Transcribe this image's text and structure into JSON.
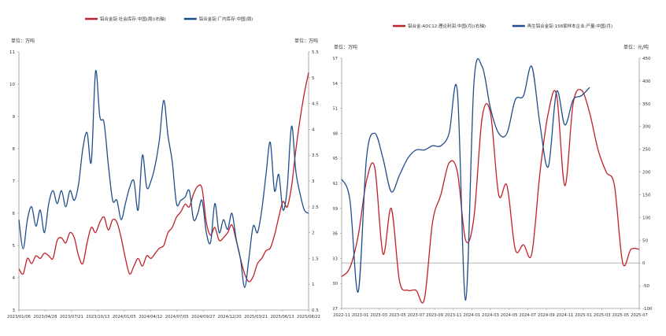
{
  "chart_data": [
    {
      "type": "line",
      "legend": [
        "铝合金锭:社会库存:中国(周)(右轴)",
        "铝合金锭:厂内库存:中国(周)"
      ],
      "left_unit": "单位：万吨",
      "right_unit": "单位：万吨",
      "x_tick_labels": [
        "2023/01/06",
        "2023/04/28",
        "2023/07/21",
        "2023/10/13",
        "2024/01/05",
        "2024/04/12",
        "2024/07/05",
        "2024/09/27",
        "2024/12/20",
        "2025/03/21",
        "2025/06/13",
        "2025/08/22"
      ],
      "left_axis": {
        "min": 3,
        "max": 11,
        "ticks": [
          "3",
          "4",
          "5",
          "6",
          "7",
          "8",
          "9",
          "10",
          "11"
        ]
      },
      "right_axis": {
        "min": 0.5,
        "max": 5.5,
        "ticks": [
          "0.5",
          "1",
          "1.5",
          "2",
          "2.5",
          "3",
          "3.5",
          "4",
          "4.5",
          "5",
          "5.5"
        ]
      },
      "series": [
        {
          "name": "铝合金锭:社会库存:中国(周)(右轴)",
          "axis": "right",
          "color": "#c0202a",
          "values": [
            [
              0,
              1.3
            ],
            [
              0.5,
              1.2
            ],
            [
              1,
              1.5
            ],
            [
              1.5,
              1.4
            ],
            [
              2,
              1.55
            ],
            [
              2.5,
              1.5
            ],
            [
              3,
              1.6
            ],
            [
              3.5,
              1.55
            ],
            [
              4,
              1.5
            ],
            [
              4.5,
              1.85
            ],
            [
              5,
              1.9
            ],
            [
              5.5,
              1.8
            ],
            [
              6,
              2.0
            ],
            [
              6.5,
              1.9
            ],
            [
              7,
              1.55
            ],
            [
              7.5,
              1.4
            ],
            [
              8,
              1.8
            ],
            [
              8.5,
              2.1
            ],
            [
              9,
              2.0
            ],
            [
              9.5,
              2.2
            ],
            [
              10,
              2.3
            ],
            [
              10.5,
              2.05
            ],
            [
              11,
              2.25
            ],
            [
              11.5,
              2.2
            ],
            [
              12,
              1.9
            ],
            [
              12.5,
              1.5
            ],
            [
              13,
              1.2
            ],
            [
              13.5,
              1.35
            ],
            [
              14,
              1.5
            ],
            [
              14.5,
              1.35
            ],
            [
              15,
              1.55
            ],
            [
              15.5,
              1.5
            ],
            [
              16,
              1.6
            ],
            [
              16.5,
              1.7
            ],
            [
              17,
              1.75
            ],
            [
              17.5,
              2.0
            ],
            [
              18,
              2.1
            ],
            [
              18.5,
              2.3
            ],
            [
              19,
              2.4
            ],
            [
              19.5,
              2.55
            ],
            [
              20,
              2.5
            ],
            [
              20.5,
              2.75
            ],
            [
              21,
              2.9
            ],
            [
              21.5,
              2.85
            ],
            [
              22,
              2.2
            ],
            [
              22.5,
              1.95
            ],
            [
              23,
              2.1
            ],
            [
              23.5,
              1.85
            ],
            [
              24,
              1.9
            ],
            [
              24.5,
              2.0
            ],
            [
              25,
              2.15
            ],
            [
              25.5,
              1.85
            ],
            [
              26,
              1.5
            ],
            [
              26.5,
              1.2
            ],
            [
              27,
              1.05
            ],
            [
              27.5,
              1.15
            ],
            [
              28,
              1.4
            ],
            [
              28.5,
              1.5
            ],
            [
              29,
              1.65
            ],
            [
              29.5,
              1.7
            ],
            [
              30,
              1.95
            ],
            [
              30.5,
              2.3
            ],
            [
              31,
              2.6
            ],
            [
              31.5,
              2.5
            ],
            [
              32,
              2.9
            ],
            [
              32.5,
              3.6
            ],
            [
              33,
              4.2
            ],
            [
              33.5,
              4.7
            ],
            [
              34,
              5.1
            ]
          ]
        },
        {
          "name": "铝合金锭:厂内库存:中国(周)",
          "axis": "left",
          "color": "#1f4e8c",
          "values": [
            [
              0,
              5.8
            ],
            [
              0.5,
              4.9
            ],
            [
              1,
              5.8
            ],
            [
              1.5,
              6.2
            ],
            [
              2,
              5.6
            ],
            [
              2.5,
              6.1
            ],
            [
              3,
              5.4
            ],
            [
              3.5,
              6.3
            ],
            [
              4,
              6.7
            ],
            [
              4.5,
              6.3
            ],
            [
              5,
              6.7
            ],
            [
              5.5,
              6.2
            ],
            [
              6,
              6.7
            ],
            [
              6.5,
              6.4
            ],
            [
              7,
              6.9
            ],
            [
              7.5,
              8.0
            ],
            [
              8,
              8.5
            ],
            [
              8.5,
              7.6
            ],
            [
              9,
              10.4
            ],
            [
              9.5,
              9.0
            ],
            [
              10,
              8.8
            ],
            [
              10.5,
              7.5
            ],
            [
              11,
              6.4
            ],
            [
              11.5,
              6.4
            ],
            [
              12,
              5.8
            ],
            [
              12.5,
              6.3
            ],
            [
              13,
              6.8
            ],
            [
              13.5,
              7.0
            ],
            [
              14,
              6.1
            ],
            [
              14.5,
              7.8
            ],
            [
              15,
              6.8
            ],
            [
              15.5,
              7.0
            ],
            [
              16,
              7.5
            ],
            [
              16.5,
              8.3
            ],
            [
              17,
              9.5
            ],
            [
              17.5,
              8.4
            ],
            [
              18,
              7.6
            ],
            [
              18.5,
              6.3
            ],
            [
              19,
              6.4
            ],
            [
              19.5,
              6.5
            ],
            [
              20,
              6.7
            ],
            [
              20.5,
              5.8
            ],
            [
              21,
              6.0
            ],
            [
              21.5,
              6.4
            ],
            [
              22,
              5.4
            ],
            [
              22.5,
              5.1
            ],
            [
              23,
              6.3
            ],
            [
              23.5,
              5.4
            ],
            [
              24,
              5.8
            ],
            [
              24.5,
              5.5
            ],
            [
              25,
              6.0
            ],
            [
              25.5,
              5.2
            ],
            [
              26,
              4.6
            ],
            [
              26.5,
              3.7
            ],
            [
              27,
              4.6
            ],
            [
              27.5,
              5.6
            ],
            [
              28,
              5.4
            ],
            [
              28.5,
              6.1
            ],
            [
              29,
              7.2
            ],
            [
              29.5,
              8.2
            ],
            [
              30,
              6.7
            ],
            [
              30.5,
              7.2
            ],
            [
              31,
              6.1
            ],
            [
              31.5,
              6.8
            ],
            [
              32,
              8.7
            ],
            [
              32.5,
              7.3
            ],
            [
              33,
              6.6
            ],
            [
              33.5,
              6.1
            ],
            [
              34,
              6.0
            ]
          ]
        }
      ]
    },
    {
      "type": "line",
      "legend": [
        "铝合金:ADC12:理论利润:中国(月)(右轴)",
        "再生铝合金锭:158家样本企业:产量:中国(月)"
      ],
      "left_unit": "单位：万吨",
      "right_unit": "单位：元/吨",
      "x_tick_labels": [
        "2022-11",
        "2023-01",
        "2023-03",
        "2023-05",
        "2023-07",
        "2023-09",
        "2023-11",
        "2024-01",
        "2024-03",
        "2024-05",
        "2024-07",
        "2024-09",
        "2024-11",
        "2025-01",
        "2025-03",
        "2025-05",
        "2025-07"
      ],
      "left_axis": {
        "min": 27,
        "max": 57,
        "ticks": [
          "27",
          "30",
          "33",
          "36",
          "39",
          "42",
          "45",
          "48",
          "51",
          "54",
          "57"
        ]
      },
      "right_axis": {
        "min": -100,
        "max": 450,
        "ticks": [
          "-100",
          "-50",
          "0",
          "50",
          "100",
          "150",
          "200",
          "250",
          "300",
          "350",
          "400",
          "450"
        ]
      },
      "series": [
        {
          "name": "铝合金:ADC12:理论利润:中国(月)(右轴)",
          "axis": "right",
          "color": "#c0202a",
          "values": [
            [
              0,
              -30
            ],
            [
              0.5,
              -10
            ],
            [
              1,
              60
            ],
            [
              1.5,
              180
            ],
            [
              2,
              210
            ],
            [
              2.5,
              20
            ],
            [
              3,
              120
            ],
            [
              3.5,
              -40
            ],
            [
              4,
              -60
            ],
            [
              4.5,
              -60
            ],
            [
              5,
              -80
            ],
            [
              5.5,
              90
            ],
            [
              6,
              150
            ],
            [
              6.5,
              220
            ],
            [
              7,
              200
            ],
            [
              7.5,
              50
            ],
            [
              8,
              100
            ],
            [
              8.5,
              320
            ],
            [
              9,
              330
            ],
            [
              9.5,
              150
            ],
            [
              10,
              170
            ],
            [
              10.5,
              30
            ],
            [
              11,
              40
            ],
            [
              11.5,
              20
            ],
            [
              12,
              200
            ],
            [
              12.5,
              330
            ],
            [
              13,
              370
            ],
            [
              13.5,
              170
            ],
            [
              14,
              350
            ],
            [
              14.5,
              380
            ],
            [
              15,
              330
            ],
            [
              15.5,
              250
            ],
            [
              16,
              200
            ],
            [
              16.5,
              170
            ],
            [
              17,
              0
            ],
            [
              17.5,
              30
            ],
            [
              18,
              30
            ]
          ]
        },
        {
          "name": "再生铝合金锭:158家样本企业:产量:中国(月)",
          "axis": "left",
          "color": "#1f4e8c",
          "values": [
            [
              0,
              42.5
            ],
            [
              0.5,
              40
            ],
            [
              1,
              29
            ],
            [
              1.5,
              45
            ],
            [
              2,
              48
            ],
            [
              2.5,
              45
            ],
            [
              3,
              41
            ],
            [
              3.5,
              43
            ],
            [
              4,
              45
            ],
            [
              4.5,
              46
            ],
            [
              5,
              46
            ],
            [
              5.5,
              46.5
            ],
            [
              6,
              46.5
            ],
            [
              6.5,
              48
            ],
            [
              7,
              53
            ],
            [
              7.5,
              28
            ],
            [
              8,
              54
            ],
            [
              8.5,
              56
            ],
            [
              9,
              51
            ],
            [
              9.5,
              48
            ],
            [
              10,
              48
            ],
            [
              10.5,
              52
            ],
            [
              11,
              52.5
            ],
            [
              11.5,
              56
            ],
            [
              12,
              49
            ],
            [
              12.5,
              44
            ],
            [
              13,
              53
            ],
            [
              13.5,
              49
            ],
            [
              14,
              52
            ],
            [
              14.5,
              52.5
            ],
            [
              15,
              53.5
            ]
          ]
        }
      ]
    }
  ]
}
